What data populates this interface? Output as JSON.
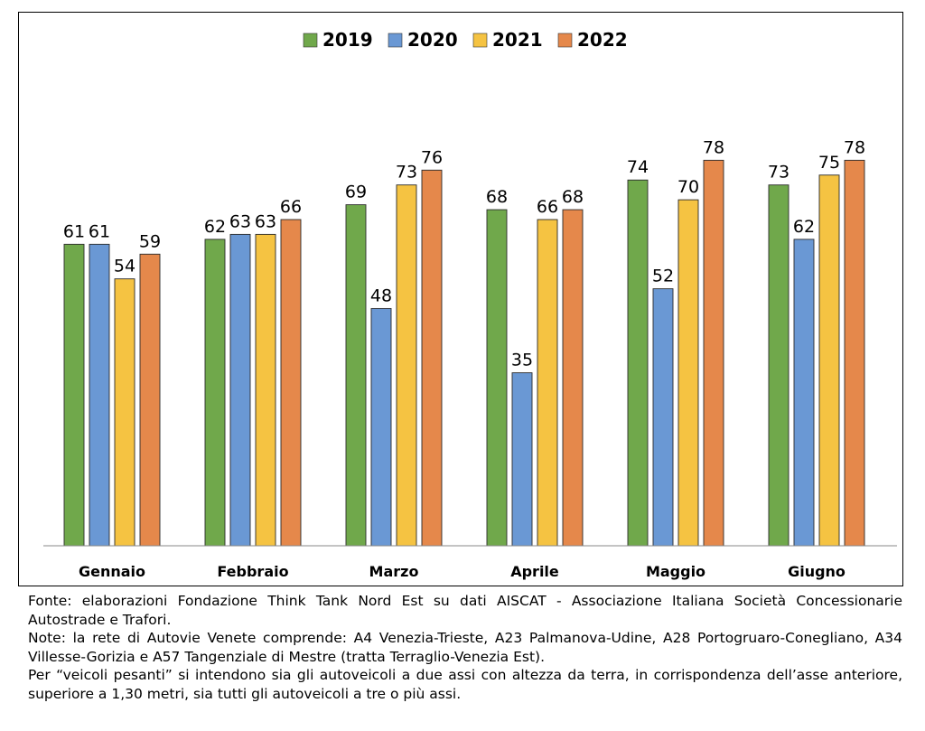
{
  "chart_data": {
    "type": "bar",
    "categories": [
      "Gennaio",
      "Febbraio",
      "Marzo",
      "Aprile",
      "Maggio",
      "Giugno"
    ],
    "series": [
      {
        "name": "2019",
        "values": [
          61,
          62,
          69,
          68,
          74,
          73
        ]
      },
      {
        "name": "2020",
        "values": [
          61,
          63,
          48,
          35,
          52,
          62
        ]
      },
      {
        "name": "2021",
        "values": [
          54,
          63,
          73,
          66,
          70,
          75
        ]
      },
      {
        "name": "2022",
        "values": [
          59,
          66,
          76,
          68,
          78,
          78
        ]
      }
    ],
    "colors": [
      "#70a84b",
      "#6a98d4",
      "#f5c342",
      "#e5884b"
    ],
    "ylim": [
      0,
      88
    ],
    "legend_position": "top-center",
    "grid": false,
    "title": "",
    "xlabel": "",
    "ylabel": ""
  },
  "notes": {
    "source": "Fonte: elaborazioni Fondazione Think Tank Nord Est su dati AISCAT - Associazione Italiana Società Concessionarie Autostrade e Trafori.",
    "network": "Note: la rete di Autovie Venete comprende: A4 Venezia-Trieste, A23 Palmanova-Udine, A28 Portogruaro-Conegliano, A34 Villesse-Gorizia e A57 Tangenziale di Mestre (tratta Terraglio-Venezia Est).",
    "definition": "Per “veicoli pesanti” si intendono sia gli autoveicoli a due assi con altezza da terra, in corrispondenza dell’asse anteriore, superiore a 1,30 metri, sia tutti gli autoveicoli a tre o più assi."
  }
}
